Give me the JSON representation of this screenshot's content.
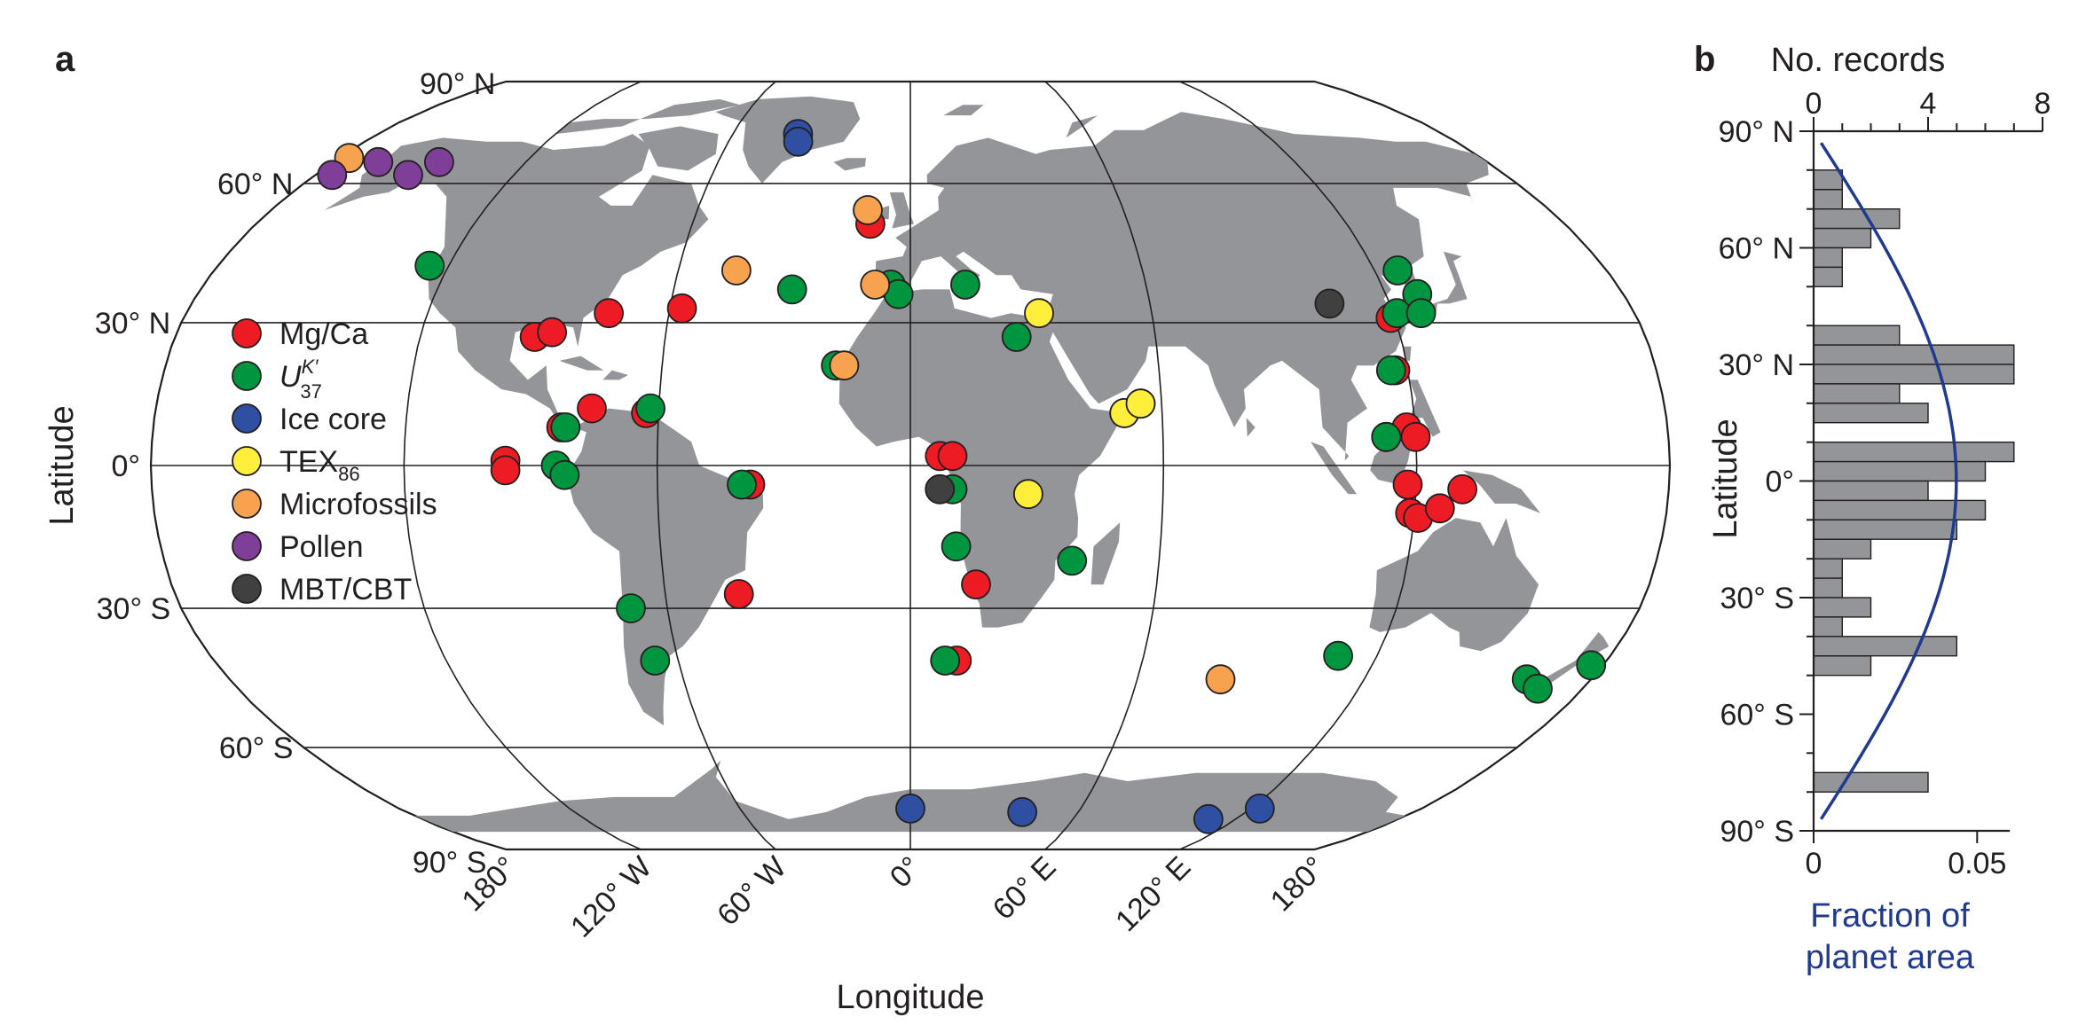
{
  "panel_a": {
    "label": "a",
    "xlabel": "Longitude",
    "ylabel": "Latitude",
    "lat_ticks": [
      {
        "lat": 90,
        "label": "90° N"
      },
      {
        "lat": 60,
        "label": "60° N"
      },
      {
        "lat": 30,
        "label": "30° N"
      },
      {
        "lat": 0,
        "label": "0°"
      },
      {
        "lat": -30,
        "label": "30° S"
      },
      {
        "lat": -60,
        "label": "60° S"
      },
      {
        "lat": -90,
        "label": "90° S"
      }
    ],
    "lon_ticks": [
      {
        "lon": -180,
        "label": "180°"
      },
      {
        "lon": -120,
        "label": "120° W"
      },
      {
        "lon": -60,
        "label": "60° W"
      },
      {
        "lon": 0,
        "label": "0°"
      },
      {
        "lon": 60,
        "label": "60° E"
      },
      {
        "lon": 120,
        "label": "120° E"
      },
      {
        "lon": 180,
        "label": "180°"
      }
    ],
    "colors": {
      "land": "#939598",
      "ocean": "#ffffff",
      "grid": "#231f20"
    }
  },
  "chart_data": [
    {
      "type": "scatter",
      "projection": "Robinson",
      "xlabel": "Longitude",
      "ylabel": "Latitude",
      "xlim": [
        -180,
        180
      ],
      "ylim": [
        -90,
        90
      ],
      "legend_position": "left",
      "series": [
        {
          "name": "Mg/Ca",
          "color": "#ed1c24",
          "points": [
            {
              "lon": -92,
              "lat": 27
            },
            {
              "lon": -88,
              "lat": 28
            },
            {
              "lon": -75,
              "lat": 32
            },
            {
              "lon": -57,
              "lat": 33
            },
            {
              "lon": -83,
              "lat": 8
            },
            {
              "lon": -76,
              "lat": 12
            },
            {
              "lon": -63,
              "lat": 11
            },
            {
              "lon": -96,
              "lat": 1
            },
            {
              "lon": -96,
              "lat": -1
            },
            {
              "lon": -38,
              "lat": -4
            },
            {
              "lon": -42,
              "lat": -27
            },
            {
              "lon": -11,
              "lat": 51
            },
            {
              "lon": 7,
              "lat": 2
            },
            {
              "lon": 10,
              "lat": 2
            },
            {
              "lon": 16,
              "lat": -25
            },
            {
              "lon": 12,
              "lat": -41
            },
            {
              "lon": 117,
              "lat": 20
            },
            {
              "lon": 119,
              "lat": 31
            },
            {
              "lon": 113,
              "lat": 6
            },
            {
              "lon": 118,
              "lat": 8
            },
            {
              "lon": 120,
              "lat": 6
            },
            {
              "lon": 118,
              "lat": -4
            },
            {
              "lon": 119,
              "lat": -10
            },
            {
              "lon": 121,
              "lat": -11
            },
            {
              "lon": 126,
              "lat": -9
            },
            {
              "lon": 131,
              "lat": -5
            }
          ]
        },
        {
          "name": "UK'37",
          "color": "#00963f",
          "points": [
            {
              "lon": -125,
              "lat": 42
            },
            {
              "lon": -82,
              "lat": 8
            },
            {
              "lon": -84,
              "lat": 0
            },
            {
              "lon": -82,
              "lat": -2
            },
            {
              "lon": -62,
              "lat": 12
            },
            {
              "lon": -40,
              "lat": -4
            },
            {
              "lon": -69,
              "lat": -30
            },
            {
              "lon": -66,
              "lat": -41
            },
            {
              "lon": -30,
              "lat": 37
            },
            {
              "lon": -5,
              "lat": 38
            },
            {
              "lon": -3,
              "lat": 36
            },
            {
              "lon": 14,
              "lat": 38
            },
            {
              "lon": -18,
              "lat": 21
            },
            {
              "lon": 26,
              "lat": 27
            },
            {
              "lon": 10,
              "lat": -5
            },
            {
              "lon": 11,
              "lat": -17
            },
            {
              "lon": 9,
              "lat": -41
            },
            {
              "lon": 39,
              "lat": -20
            },
            {
              "lon": 51,
              "lat": 11
            },
            {
              "lon": 55,
              "lat": 13
            },
            {
              "lon": 116,
              "lat": 20
            },
            {
              "lon": 113,
              "lat": 6
            },
            {
              "lon": 121,
              "lat": 32
            },
            {
              "lon": 126,
              "lat": 41
            },
            {
              "lon": 128,
              "lat": 36
            },
            {
              "lon": 127,
              "lat": 32
            },
            {
              "lon": 110,
              "lat": -40
            },
            {
              "lon": 163,
              "lat": -45
            },
            {
              "lon": 168,
              "lat": -47
            },
            {
              "lon": 177,
              "lat": -42
            }
          ]
        },
        {
          "name": "Ice core",
          "color": "#2e4fa2",
          "points": [
            {
              "lon": -38,
              "lat": 72
            },
            {
              "lon": -37,
              "lat": 70
            },
            {
              "lon": 0,
              "lat": -75
            },
            {
              "lon": 40,
              "lat": -76
            },
            {
              "lon": 110,
              "lat": -78
            },
            {
              "lon": 123,
              "lat": -75
            }
          ]
        },
        {
          "name": "TEX86",
          "color": "#ffef3a",
          "points": [
            {
              "lon": 32,
              "lat": 32
            },
            {
              "lon": 51,
              "lat": 11
            },
            {
              "lon": 55,
              "lat": 13
            },
            {
              "lon": 28,
              "lat": -6
            }
          ]
        },
        {
          "name": "Microfossils",
          "color": "#f7a24f",
          "points": [
            {
              "lon": -177,
              "lat": 66
            },
            {
              "lon": -12,
              "lat": 54
            },
            {
              "lon": -45,
              "lat": 41
            },
            {
              "lon": -9,
              "lat": 38
            },
            {
              "lon": -16,
              "lat": 21
            },
            {
              "lon": 82,
              "lat": -45
            }
          ]
        },
        {
          "name": "Pollen",
          "color": "#7f3f98",
          "points": [
            {
              "lon": -175,
              "lat": 62
            },
            {
              "lon": -166,
              "lat": 65
            },
            {
              "lon": -152,
              "lat": 62
            },
            {
              "lon": -147,
              "lat": 65
            }
          ]
        },
        {
          "name": "MBT/CBT",
          "color": "#404041",
          "points": [
            {
              "lon": 105,
              "lat": 34
            },
            {
              "lon": 7,
              "lat": -5
            }
          ]
        }
      ]
    },
    {
      "type": "bar",
      "orientation": "horizontal",
      "title": "",
      "ylabel": "Latitude",
      "top_xlabel": "No. records",
      "bottom_xlabel_line1": "Fraction of",
      "bottom_xlabel_line2": "planet area",
      "ylim": [
        -90,
        90
      ],
      "top_xlim": [
        0,
        8
      ],
      "bottom_xlim": [
        0,
        0.07
      ],
      "top_ticks": [
        {
          "value": 0,
          "label": "0"
        },
        {
          "value": 4,
          "label": "4"
        },
        {
          "value": 8,
          "label": "8"
        }
      ],
      "bottom_ticks": [
        {
          "value": 0,
          "label": "0"
        },
        {
          "value": 0.05,
          "label": "0.05"
        }
      ],
      "lat_ticks": [
        {
          "lat": 90,
          "label": "90° N"
        },
        {
          "lat": 60,
          "label": "60° N"
        },
        {
          "lat": 30,
          "label": "30° N"
        },
        {
          "lat": 0,
          "label": "0°"
        },
        {
          "lat": -30,
          "label": "30° S"
        },
        {
          "lat": -60,
          "label": "60° S"
        },
        {
          "lat": -90,
          "label": "90° S"
        }
      ],
      "bin_size_deg": 5,
      "bin_lat_centers": [
        77.5,
        72.5,
        67.5,
        62.5,
        57.5,
        52.5,
        37.5,
        32.5,
        27.5,
        22.5,
        17.5,
        7.5,
        2.5,
        -2.5,
        -7.5,
        -12.5,
        -17.5,
        -22.5,
        -27.5,
        -32.5,
        -37.5,
        -42.5,
        -47.5,
        -77.5
      ],
      "record_counts": [
        1,
        1,
        3,
        2,
        1,
        1,
        3,
        7,
        7,
        3,
        4,
        7,
        6,
        4,
        6,
        5,
        2,
        1,
        1,
        2,
        1,
        5,
        2,
        4
      ],
      "area_curve": "cos(lat)",
      "colors": {
        "bars": "#939598",
        "curve": "#1f3a8f"
      }
    }
  ],
  "panel_b": {
    "label": "b"
  }
}
